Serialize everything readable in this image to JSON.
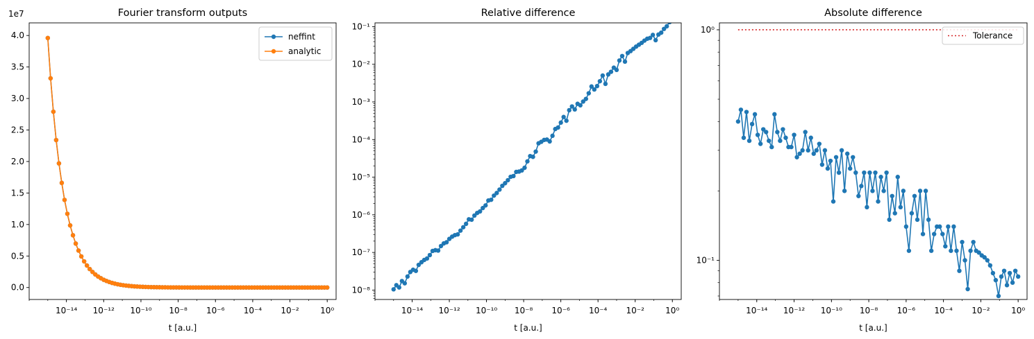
{
  "chart_data": [
    {
      "type": "line",
      "title": "Fourier transform outputs",
      "xlabel": "t [a.u.]",
      "ylabel": "",
      "xscale": "log",
      "yscale": "linear",
      "xlim": [
        1e-16,
        3.0
      ],
      "ylim": [
        -1900000.0,
        42000000.0
      ],
      "offset_text": "1e7",
      "xticks": [
        {
          "exp": -14,
          "label": "10⁻¹⁴"
        },
        {
          "exp": -12,
          "label": "10⁻¹²"
        },
        {
          "exp": -10,
          "label": "10⁻¹⁰"
        },
        {
          "exp": -8,
          "label": "10⁻⁸"
        },
        {
          "exp": -6,
          "label": "10⁻⁶"
        },
        {
          "exp": -4,
          "label": "10⁻⁴"
        },
        {
          "exp": -2,
          "label": "10⁻²"
        },
        {
          "exp": 0,
          "label": "10⁰"
        }
      ],
      "yticks": [
        {
          "value": 0,
          "label": "0.0"
        },
        {
          "value": 5000000,
          "label": "0.5"
        },
        {
          "value": 10000000,
          "label": "1.0"
        },
        {
          "value": 15000000,
          "label": "1.5"
        },
        {
          "value": 20000000,
          "label": "2.0"
        },
        {
          "value": 25000000,
          "label": "2.5"
        },
        {
          "value": 30000000,
          "label": "3.0"
        },
        {
          "value": 35000000,
          "label": "3.5"
        },
        {
          "value": 40000000,
          "label": "4.0"
        }
      ],
      "legend": "top-right",
      "series": [
        {
          "name": "neffint",
          "color": "#1f77b4"
        },
        {
          "name": "analytic",
          "color": "#ff7f0e"
        }
      ],
      "x_exponents": [
        -15.0,
        -14.85,
        -14.7,
        -14.55,
        -14.4,
        -14.25,
        -14.1,
        -13.95,
        -13.8,
        -13.65,
        -13.5,
        -13.35,
        -13.2,
        -13.05,
        -12.9,
        -12.75,
        -12.6,
        -12.45,
        -12.3,
        -12.15,
        -12.0,
        -11.85,
        -11.7,
        -11.55,
        -11.4,
        -11.25,
        -11.1,
        -10.95,
        -10.8,
        -10.65,
        -10.5,
        -10.35,
        -10.2,
        -10.05,
        -9.9,
        -9.75,
        -9.6,
        -9.45,
        -9.3,
        -9.15,
        -9.0,
        -8.85,
        -8.7,
        -8.55,
        -8.4,
        -8.25,
        -8.1,
        -7.95,
        -7.8,
        -7.65,
        -7.5,
        -7.35,
        -7.2,
        -7.05,
        -6.9,
        -6.75,
        -6.6,
        -6.45,
        -6.3,
        -6.15,
        -6.0,
        -5.85,
        -5.7,
        -5.55,
        -5.4,
        -5.25,
        -5.1,
        -4.95,
        -4.8,
        -4.65,
        -4.5,
        -4.35,
        -4.2,
        -4.05,
        -3.9,
        -3.75,
        -3.6,
        -3.45,
        -3.3,
        -3.15,
        -3.0,
        -2.85,
        -2.7,
        -2.55,
        -2.4,
        -2.25,
        -2.1,
        -1.95,
        -1.8,
        -1.65,
        -1.5,
        -1.35,
        -1.2,
        -1.05,
        -0.9,
        -0.75,
        -0.6,
        -0.45,
        -0.3,
        -0.15,
        0.0
      ],
      "y_values": [
        39600000,
        33200000,
        27900000,
        23400000,
        19700000,
        16600000,
        13900000,
        11700000,
        9860000,
        8290000,
        6970000,
        5860000,
        4930000,
        4150000,
        3490000,
        2930000,
        2470000,
        2070000,
        1740000,
        1470000,
        1230000,
        1040000,
        873000,
        734000,
        617000,
        519000,
        436000,
        367000,
        309000,
        260000,
        218000,
        184000,
        154000,
        130000,
        109000,
        92000,
        77000,
        65000,
        55000,
        46000,
        39000,
        33000,
        27000,
        23000,
        19000,
        16000,
        14000,
        12000,
        10000,
        8000,
        7000,
        6000,
        5000,
        4000,
        3500,
        3000,
        2500,
        2000,
        1700,
        1400,
        1200,
        1000,
        850,
        700,
        600,
        500,
        420,
        350,
        300,
        250,
        210,
        180,
        150,
        120,
        100,
        85,
        70,
        60,
        50,
        42,
        35,
        30,
        25,
        21,
        18,
        15,
        12,
        10,
        9,
        7,
        6,
        5,
        4,
        3.5,
        3,
        2.5,
        2,
        1.7,
        1.4,
        1.2,
        1
      ]
    },
    {
      "type": "scatter",
      "title": "Relative difference",
      "xlabel": "t [a.u.]",
      "ylabel": "",
      "xscale": "log",
      "yscale": "log",
      "xlim": [
        1e-16,
        3.0
      ],
      "ylim_exp": [
        -8.25,
        -0.9
      ],
      "xticks": [
        {
          "exp": -14,
          "label": "10⁻¹⁴"
        },
        {
          "exp": -12,
          "label": "10⁻¹²"
        },
        {
          "exp": -10,
          "label": "10⁻¹⁰"
        },
        {
          "exp": -8,
          "label": "10⁻⁸"
        },
        {
          "exp": -6,
          "label": "10⁻⁶"
        },
        {
          "exp": -4,
          "label": "10⁻⁴"
        },
        {
          "exp": -2,
          "label": "10⁻²"
        },
        {
          "exp": 0,
          "label": "10⁰"
        }
      ],
      "yticks": [
        {
          "exp": -8,
          "label": "10⁻⁸"
        },
        {
          "exp": -7,
          "label": "10⁻⁷"
        },
        {
          "exp": -6,
          "label": "10⁻⁶"
        },
        {
          "exp": -5,
          "label": "10⁻⁵"
        },
        {
          "exp": -4,
          "label": "10⁻⁴"
        },
        {
          "exp": -3,
          "label": "10⁻³"
        },
        {
          "exp": -2,
          "label": "10⁻²"
        },
        {
          "exp": -1,
          "label": "10⁻¹"
        }
      ],
      "series": [
        {
          "name": "",
          "color": "#1f77b4"
        }
      ],
      "x_exponents": [
        -15.0,
        -14.85,
        -14.7,
        -14.55,
        -14.4,
        -14.25,
        -14.1,
        -13.95,
        -13.8,
        -13.65,
        -13.5,
        -13.35,
        -13.2,
        -13.05,
        -12.9,
        -12.75,
        -12.6,
        -12.45,
        -12.3,
        -12.15,
        -12.0,
        -11.85,
        -11.7,
        -11.55,
        -11.4,
        -11.25,
        -11.1,
        -10.95,
        -10.8,
        -10.65,
        -10.5,
        -10.35,
        -10.2,
        -10.05,
        -9.9,
        -9.75,
        -9.6,
        -9.45,
        -9.3,
        -9.15,
        -9.0,
        -8.85,
        -8.7,
        -8.55,
        -8.4,
        -8.25,
        -8.1,
        -7.95,
        -7.8,
        -7.65,
        -7.5,
        -7.35,
        -7.2,
        -7.05,
        -6.9,
        -6.75,
        -6.6,
        -6.45,
        -6.3,
        -6.15,
        -6.0,
        -5.85,
        -5.7,
        -5.55,
        -5.4,
        -5.25,
        -5.1,
        -4.95,
        -4.8,
        -4.65,
        -4.5,
        -4.35,
        -4.2,
        -4.05,
        -3.9,
        -3.75,
        -3.6,
        -3.45,
        -3.3,
        -3.15,
        -3.0,
        -2.85,
        -2.7,
        -2.55,
        -2.4,
        -2.25,
        -2.1,
        -1.95,
        -1.8,
        -1.65,
        -1.5,
        -1.35,
        -1.2,
        -1.05,
        -0.9,
        -0.75,
        -0.6,
        -0.45,
        -0.3,
        -0.15,
        0.0
      ],
      "y_exponents": [
        -7.98,
        -7.87,
        -7.93,
        -7.76,
        -7.82,
        -7.64,
        -7.52,
        -7.46,
        -7.49,
        -7.33,
        -7.26,
        -7.2,
        -7.16,
        -7.07,
        -6.96,
        -6.94,
        -6.95,
        -6.83,
        -6.76,
        -6.73,
        -6.64,
        -6.58,
        -6.54,
        -6.52,
        -6.42,
        -6.33,
        -6.24,
        -6.12,
        -6.13,
        -6.02,
        -5.95,
        -5.91,
        -5.82,
        -5.75,
        -5.62,
        -5.6,
        -5.49,
        -5.42,
        -5.33,
        -5.23,
        -5.16,
        -5.08,
        -4.99,
        -4.97,
        -4.86,
        -4.85,
        -4.82,
        -4.75,
        -4.58,
        -4.44,
        -4.46,
        -4.32,
        -4.1,
        -4.06,
        -4.01,
        -4.0,
        -4.05,
        -3.9,
        -3.72,
        -3.68,
        -3.55,
        -3.4,
        -3.5,
        -3.22,
        -3.12,
        -3.2,
        -3.05,
        -3.09,
        -2.99,
        -2.92,
        -2.77,
        -2.59,
        -2.67,
        -2.58,
        -2.45,
        -2.3,
        -2.52,
        -2.27,
        -2.2,
        -2.09,
        -2.15,
        -1.9,
        -1.78,
        -1.93,
        -1.7,
        -1.65,
        -1.59,
        -1.53,
        -1.48,
        -1.43,
        -1.37,
        -1.32,
        -1.3,
        -1.22,
        -1.36,
        -1.21,
        -1.16,
        -1.06,
        -0.99,
        -0.88,
        -0.69
      ]
    },
    {
      "type": "line",
      "title": "Absolute difference",
      "xlabel": "t [a.u.]",
      "ylabel": "",
      "xscale": "log",
      "yscale": "log",
      "xlim": [
        1e-16,
        3.0
      ],
      "ylim_exp": [
        -1.17,
        0.03
      ],
      "xticks": [
        {
          "exp": -14,
          "label": "10⁻¹⁴"
        },
        {
          "exp": -12,
          "label": "10⁻¹²"
        },
        {
          "exp": -10,
          "label": "10⁻¹⁰"
        },
        {
          "exp": -8,
          "label": "10⁻⁸"
        },
        {
          "exp": -6,
          "label": "10⁻⁶"
        },
        {
          "exp": -4,
          "label": "10⁻⁴"
        },
        {
          "exp": -2,
          "label": "10⁻²"
        },
        {
          "exp": 0,
          "label": "10⁰"
        }
      ],
      "yticks": [
        {
          "exp": -1,
          "label": "10⁻¹"
        },
        {
          "exp": 0,
          "label": "10⁰"
        }
      ],
      "legend": "top-right",
      "series": [
        {
          "name": "",
          "color": "#1f77b4"
        },
        {
          "name": "Tolerance",
          "color": "#d62728",
          "constant": 1.0,
          "style": "dotted"
        }
      ],
      "x_exponents": [
        -15.0,
        -14.85,
        -14.7,
        -14.55,
        -14.4,
        -14.25,
        -14.1,
        -13.95,
        -13.8,
        -13.65,
        -13.5,
        -13.35,
        -13.2,
        -13.05,
        -12.9,
        -12.75,
        -12.6,
        -12.45,
        -12.3,
        -12.15,
        -12.0,
        -11.85,
        -11.7,
        -11.55,
        -11.4,
        -11.25,
        -11.1,
        -10.95,
        -10.8,
        -10.65,
        -10.5,
        -10.35,
        -10.2,
        -10.05,
        -9.9,
        -9.75,
        -9.6,
        -9.45,
        -9.3,
        -9.15,
        -9.0,
        -8.85,
        -8.7,
        -8.55,
        -8.4,
        -8.25,
        -8.1,
        -7.95,
        -7.8,
        -7.65,
        -7.5,
        -7.35,
        -7.2,
        -7.05,
        -6.9,
        -6.75,
        -6.6,
        -6.45,
        -6.3,
        -6.15,
        -6.0,
        -5.85,
        -5.7,
        -5.55,
        -5.4,
        -5.25,
        -5.1,
        -4.95,
        -4.8,
        -4.65,
        -4.5,
        -4.35,
        -4.2,
        -4.05,
        -3.9,
        -3.75,
        -3.6,
        -3.45,
        -3.3,
        -3.15,
        -3.0,
        -2.85,
        -2.7,
        -2.55,
        -2.4,
        -2.25,
        -2.1,
        -1.95,
        -1.8,
        -1.65,
        -1.5,
        -1.35,
        -1.2,
        -1.05,
        -0.9,
        -0.75,
        -0.6,
        -0.45,
        -0.3,
        -0.15,
        0.0
      ],
      "y_values": [
        0.4,
        0.45,
        0.34,
        0.44,
        0.33,
        0.39,
        0.43,
        0.35,
        0.32,
        0.37,
        0.36,
        0.33,
        0.31,
        0.43,
        0.36,
        0.33,
        0.37,
        0.34,
        0.31,
        0.31,
        0.35,
        0.28,
        0.29,
        0.3,
        0.36,
        0.3,
        0.34,
        0.29,
        0.3,
        0.32,
        0.26,
        0.3,
        0.25,
        0.27,
        0.18,
        0.28,
        0.24,
        0.3,
        0.2,
        0.29,
        0.25,
        0.28,
        0.24,
        0.19,
        0.21,
        0.24,
        0.17,
        0.24,
        0.2,
        0.24,
        0.18,
        0.23,
        0.2,
        0.24,
        0.15,
        0.19,
        0.16,
        0.23,
        0.17,
        0.2,
        0.14,
        0.11,
        0.16,
        0.19,
        0.15,
        0.2,
        0.13,
        0.2,
        0.15,
        0.11,
        0.13,
        0.14,
        0.14,
        0.13,
        0.115,
        0.14,
        0.11,
        0.14,
        0.11,
        0.09,
        0.12,
        0.1,
        0.075,
        0.11,
        0.12,
        0.11,
        0.108,
        0.105,
        0.103,
        0.1,
        0.095,
        0.088,
        0.082,
        0.07,
        0.085,
        0.09,
        0.078,
        0.088,
        0.08,
        0.09,
        0.085
      ]
    }
  ]
}
